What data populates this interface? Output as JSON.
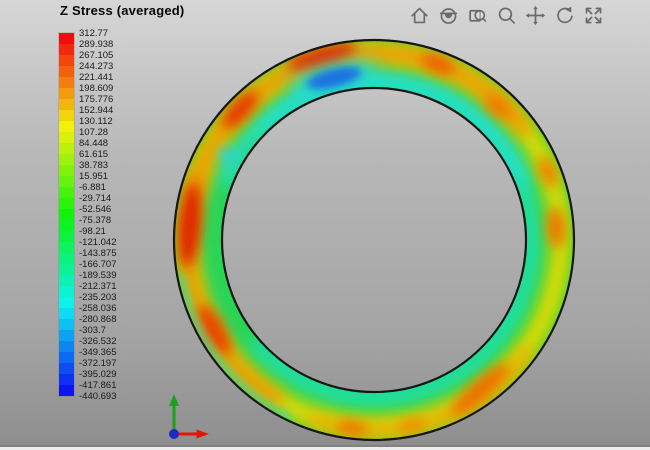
{
  "header": {
    "title": "Z Stress (averaged)"
  },
  "legend": {
    "band_count": 33,
    "hue_start": 0,
    "hue_end": 238,
    "values": [
      "312.77",
      "289.938",
      "267.105",
      "244.273",
      "221.441",
      "198.609",
      "175.776",
      "152.944",
      "130.112",
      "107.28",
      "84.448",
      "61.615",
      "38.783",
      "15.951",
      "-6.881",
      "-29.714",
      "-52.546",
      "-75.378",
      "-98.21",
      "-121.042",
      "-143.875",
      "-166.707",
      "-189.539",
      "-212.371",
      "-235.203",
      "-258.036",
      "-280.868",
      "-303.7",
      "-326.532",
      "-349.365",
      "-372.197",
      "-395.029",
      "-417.861",
      "-440.693"
    ]
  },
  "toolbar": {
    "icons": [
      {
        "name": "home"
      },
      {
        "name": "view-mode"
      },
      {
        "name": "zoom-box"
      },
      {
        "name": "zoom"
      },
      {
        "name": "pan"
      },
      {
        "name": "rotate"
      },
      {
        "name": "fit-screen"
      }
    ]
  },
  "triad": {
    "x_color": "#e41505",
    "y_color": "#1ca11c",
    "z_color": "#1d2bc0"
  },
  "colors": {
    "bg_top": "#d6d6d6",
    "bg_bottom": "#8d8d8d",
    "icon": "#6a6a6a",
    "title_color": "#050505",
    "legend_text": "#1a1a1a",
    "outline": "#161616",
    "contour_base_green": "#2ed13d",
    "contour_max_red": "#f20d0d",
    "contour_min_blue": "#2a2ae0"
  }
}
